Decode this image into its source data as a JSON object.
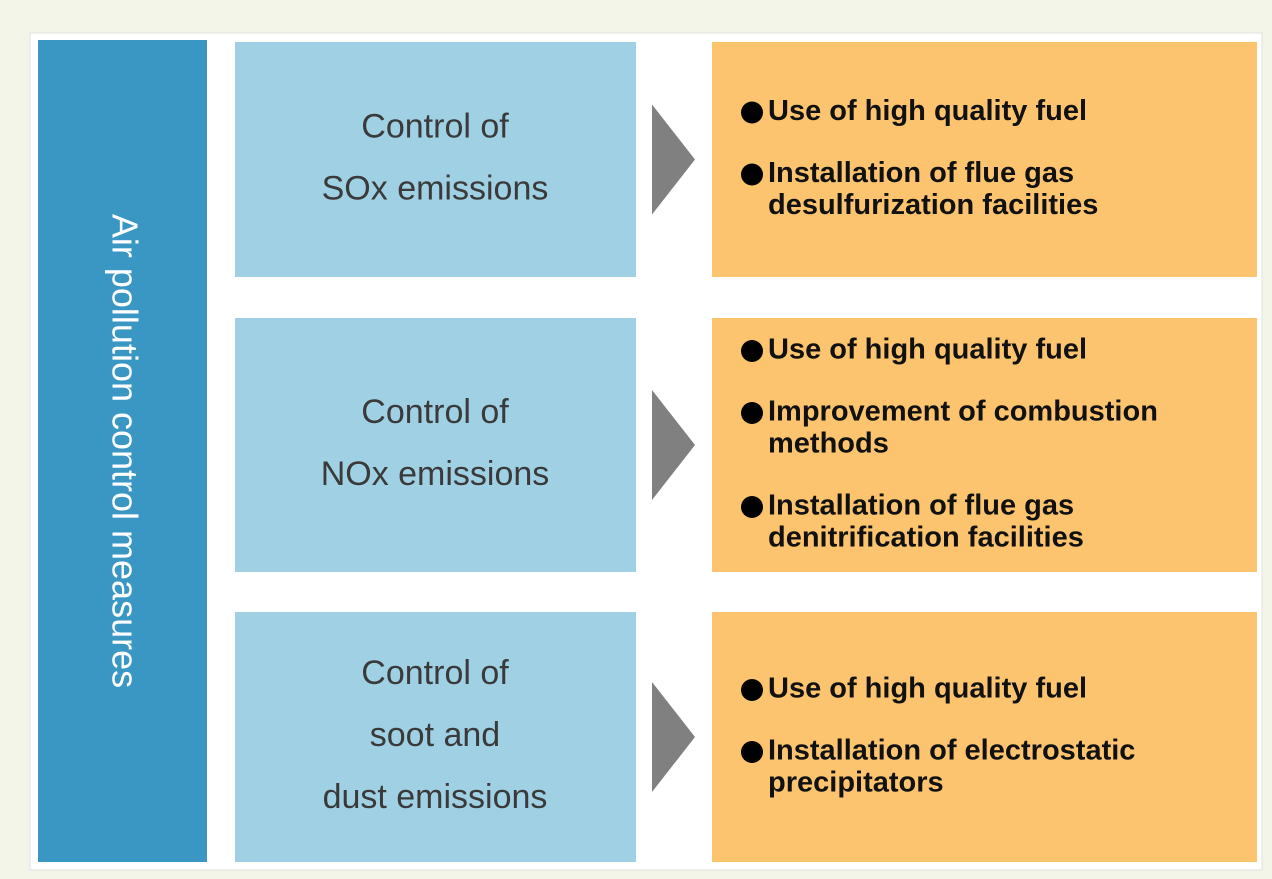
{
  "side_label": "Air pollution control measures",
  "rows": [
    {
      "label": [
        "Control of",
        "SOx emissions"
      ],
      "measures": [
        [
          "Use of high quality fuel"
        ],
        [
          "Installation of flue gas",
          "desulfurization facilities"
        ]
      ]
    },
    {
      "label": [
        "Control of",
        "NOx emissions"
      ],
      "measures": [
        [
          "Use of high quality fuel"
        ],
        [
          "Improvement of combustion",
          "methods"
        ],
        [
          "Installation of flue gas",
          "denitrification facilities"
        ]
      ]
    },
    {
      "label": [
        "Control of",
        "soot and",
        "dust emissions"
      ],
      "measures": [
        [
          "Use of high quality fuel"
        ],
        [
          "Installation of electrostatic",
          "precipitators"
        ]
      ]
    }
  ]
}
